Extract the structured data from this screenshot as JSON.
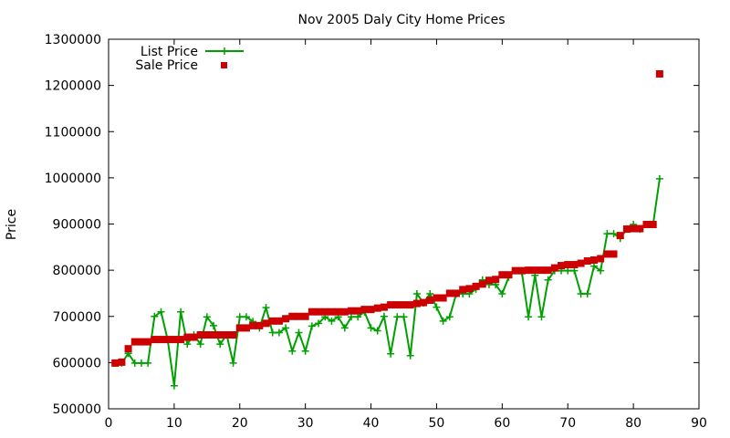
{
  "chart_data": {
    "type": "line",
    "title": "Nov 2005 Daly City Home Prices",
    "xlabel": "",
    "ylabel": "Price",
    "xlim": [
      0,
      90
    ],
    "ylim": [
      500000,
      1300000
    ],
    "x_ticks": [
      0,
      10,
      20,
      30,
      40,
      50,
      60,
      70,
      80,
      90
    ],
    "y_ticks": [
      500000,
      600000,
      700000,
      800000,
      900000,
      1000000,
      1100000,
      1200000,
      1300000
    ],
    "grid": false,
    "legend_position": "top-left",
    "series": [
      {
        "name": "List Price",
        "style": "line-with-plus-markers",
        "color": "#00a000",
        "points": [
          [
            1,
            599000
          ],
          [
            2,
            599000
          ],
          [
            3,
            620000
          ],
          [
            4,
            599000
          ],
          [
            5,
            599000
          ],
          [
            6,
            599000
          ],
          [
            7,
            700000
          ],
          [
            8,
            710000
          ],
          [
            9,
            650000
          ],
          [
            10,
            550000
          ],
          [
            11,
            710000
          ],
          [
            12,
            640000
          ],
          [
            13,
            660000
          ],
          [
            14,
            640000
          ],
          [
            15,
            699000
          ],
          [
            16,
            680000
          ],
          [
            17,
            640000
          ],
          [
            18,
            660000
          ],
          [
            19,
            599000
          ],
          [
            20,
            699000
          ],
          [
            21,
            699000
          ],
          [
            22,
            689000
          ],
          [
            23,
            675000
          ],
          [
            24,
            719000
          ],
          [
            25,
            665000
          ],
          [
            26,
            665000
          ],
          [
            27,
            675000
          ],
          [
            28,
            625000
          ],
          [
            29,
            665000
          ],
          [
            30,
            625000
          ],
          [
            31,
            679000
          ],
          [
            32,
            685000
          ],
          [
            33,
            699000
          ],
          [
            34,
            690000
          ],
          [
            35,
            699000
          ],
          [
            36,
            675000
          ],
          [
            37,
            699000
          ],
          [
            38,
            699000
          ],
          [
            39,
            710000
          ],
          [
            40,
            675000
          ],
          [
            41,
            669000
          ],
          [
            42,
            700000
          ],
          [
            43,
            619000
          ],
          [
            44,
            699000
          ],
          [
            45,
            699000
          ],
          [
            46,
            615000
          ],
          [
            47,
            749000
          ],
          [
            48,
            729000
          ],
          [
            49,
            749000
          ],
          [
            50,
            720000
          ],
          [
            51,
            690000
          ],
          [
            52,
            699000
          ],
          [
            53,
            749000
          ],
          [
            54,
            749000
          ],
          [
            55,
            749000
          ],
          [
            56,
            759000
          ],
          [
            57,
            779000
          ],
          [
            58,
            769000
          ],
          [
            59,
            769000
          ],
          [
            60,
            749000
          ],
          [
            61,
            785000
          ],
          [
            62,
            799000
          ],
          [
            63,
            795000
          ],
          [
            64,
            699000
          ],
          [
            65,
            789000
          ],
          [
            66,
            699000
          ],
          [
            67,
            779000
          ],
          [
            68,
            799000
          ],
          [
            69,
            799000
          ],
          [
            70,
            799000
          ],
          [
            71,
            799000
          ],
          [
            72,
            749000
          ],
          [
            73,
            749000
          ],
          [
            74,
            809000
          ],
          [
            75,
            799000
          ],
          [
            76,
            879000
          ],
          [
            77,
            879000
          ],
          [
            78,
            869000
          ],
          [
            79,
            889000
          ],
          [
            80,
            899000
          ],
          [
            81,
            889000
          ],
          [
            82,
            899000
          ],
          [
            83,
            899000
          ],
          [
            84,
            998000
          ]
        ]
      },
      {
        "name": "Sale Price",
        "style": "square-markers",
        "color": "#cc0000",
        "points": [
          [
            1,
            599000
          ],
          [
            2,
            601000
          ],
          [
            3,
            630000
          ],
          [
            4,
            645000
          ],
          [
            5,
            645000
          ],
          [
            6,
            645000
          ],
          [
            7,
            650000
          ],
          [
            8,
            650000
          ],
          [
            9,
            650000
          ],
          [
            10,
            650000
          ],
          [
            11,
            650000
          ],
          [
            12,
            655000
          ],
          [
            13,
            655000
          ],
          [
            14,
            660000
          ],
          [
            15,
            660000
          ],
          [
            16,
            660000
          ],
          [
            17,
            660000
          ],
          [
            18,
            660000
          ],
          [
            19,
            660000
          ],
          [
            20,
            675000
          ],
          [
            21,
            675000
          ],
          [
            22,
            680000
          ],
          [
            23,
            680000
          ],
          [
            24,
            685000
          ],
          [
            25,
            690000
          ],
          [
            26,
            690000
          ],
          [
            27,
            695000
          ],
          [
            28,
            700000
          ],
          [
            29,
            700000
          ],
          [
            30,
            700000
          ],
          [
            31,
            710000
          ],
          [
            32,
            710000
          ],
          [
            33,
            710000
          ],
          [
            34,
            710000
          ],
          [
            35,
            710000
          ],
          [
            36,
            710000
          ],
          [
            37,
            712000
          ],
          [
            38,
            712000
          ],
          [
            39,
            715000
          ],
          [
            40,
            715000
          ],
          [
            41,
            718000
          ],
          [
            42,
            720000
          ],
          [
            43,
            725000
          ],
          [
            44,
            725000
          ],
          [
            45,
            725000
          ],
          [
            46,
            725000
          ],
          [
            47,
            728000
          ],
          [
            48,
            730000
          ],
          [
            49,
            735000
          ],
          [
            50,
            740000
          ],
          [
            51,
            740000
          ],
          [
            52,
            750000
          ],
          [
            53,
            750000
          ],
          [
            54,
            758000
          ],
          [
            55,
            760000
          ],
          [
            56,
            765000
          ],
          [
            57,
            770000
          ],
          [
            58,
            778000
          ],
          [
            59,
            780000
          ],
          [
            60,
            790000
          ],
          [
            61,
            790000
          ],
          [
            62,
            799000
          ],
          [
            63,
            799000
          ],
          [
            64,
            800000
          ],
          [
            65,
            800000
          ],
          [
            66,
            800000
          ],
          [
            67,
            800000
          ],
          [
            68,
            805000
          ],
          [
            69,
            810000
          ],
          [
            70,
            812000
          ],
          [
            71,
            812000
          ],
          [
            72,
            815000
          ],
          [
            73,
            820000
          ],
          [
            74,
            822000
          ],
          [
            75,
            825000
          ],
          [
            76,
            835000
          ],
          [
            77,
            835000
          ],
          [
            78,
            875000
          ],
          [
            79,
            889000
          ],
          [
            80,
            890000
          ],
          [
            81,
            890000
          ],
          [
            82,
            899000
          ],
          [
            83,
            899000
          ],
          [
            84,
            1225000
          ]
        ]
      }
    ]
  }
}
